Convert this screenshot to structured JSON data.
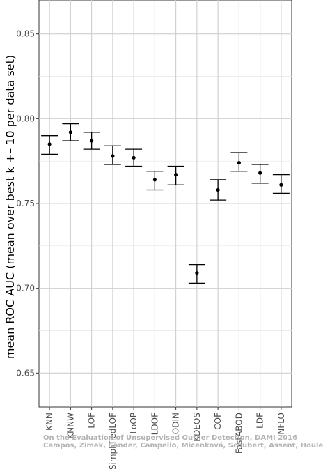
{
  "chart_data": {
    "type": "errorbar",
    "ylabel": "mean ROC AUC (mean over best k +– 10 per data set)",
    "xlabel": "",
    "title": "",
    "ylim": [
      0.63,
      0.87
    ],
    "yticks": [
      0.65,
      0.7,
      0.75,
      0.8,
      0.85
    ],
    "ytick_labels": [
      "0.65",
      "0.70",
      "0.75",
      "0.80",
      "0.85"
    ],
    "grid": true,
    "categories": [
      "KNN",
      "KNNW",
      "LOF",
      "SimplifiedLOF",
      "LoOP",
      "LDOF",
      "ODIN",
      "KDEOS",
      "COF",
      "FastABOD",
      "LDF",
      "INFLO"
    ],
    "series": [
      {
        "mean": [
          0.785,
          0.792,
          0.787,
          0.778,
          0.777,
          0.764,
          0.767,
          0.709,
          0.758,
          0.774,
          0.768,
          0.761
        ],
        "lower": [
          0.779,
          0.787,
          0.782,
          0.773,
          0.772,
          0.758,
          0.761,
          0.703,
          0.752,
          0.769,
          0.762,
          0.756
        ],
        "upper": [
          0.79,
          0.797,
          0.792,
          0.784,
          0.782,
          0.769,
          0.772,
          0.714,
          0.764,
          0.78,
          0.773,
          0.767
        ]
      }
    ]
  },
  "watermark": {
    "line1": "On the Evaluation of Unsupervised Outlier Detection, DAMI 2016",
    "line2": "Campos, Zimek, Sander, Campello, Micenková, Schubert, Assent, Houle"
  }
}
